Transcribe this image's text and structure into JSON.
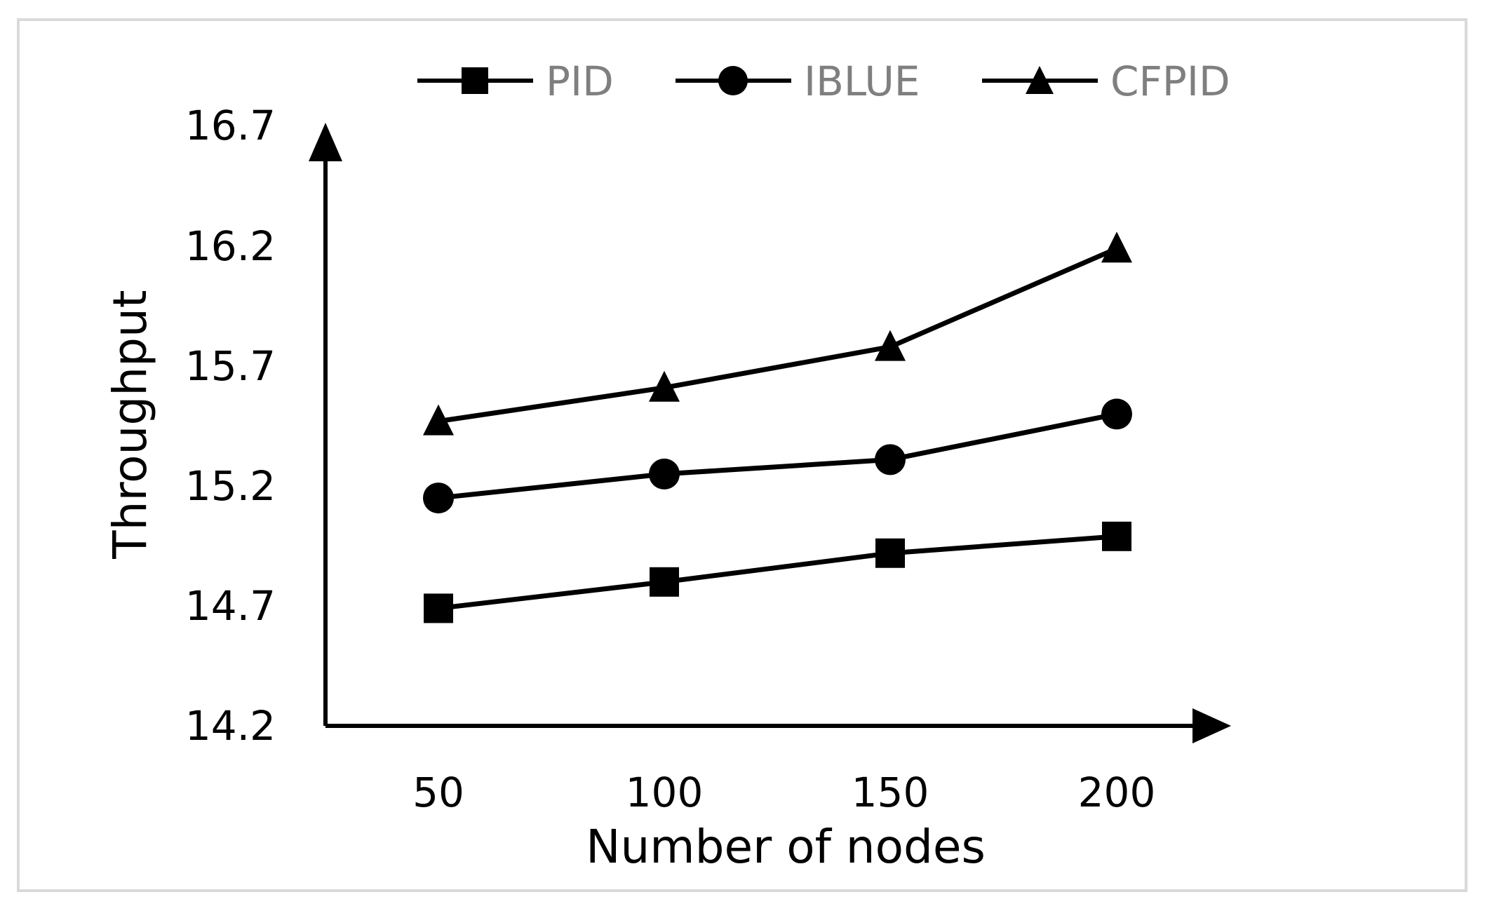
{
  "chart_data": {
    "type": "line",
    "title": "",
    "xlabel": "Number of nodes",
    "ylabel": "Throughput",
    "categories": [
      "50",
      "100",
      "150",
      "200"
    ],
    "yticks": [
      "14.2",
      "14.7",
      "15.2",
      "15.7",
      "16.2",
      "16.7"
    ],
    "ylim": [
      14.2,
      16.7
    ],
    "grid": false,
    "legend_position": "top",
    "series": [
      {
        "name": "PID",
        "marker": "square",
        "values": [
          14.69,
          14.8,
          14.92,
          14.99
        ]
      },
      {
        "name": "IBLUE",
        "marker": "circle",
        "values": [
          15.15,
          15.25,
          15.31,
          15.5
        ]
      },
      {
        "name": "CFPID",
        "marker": "triangle",
        "values": [
          15.47,
          15.61,
          15.78,
          16.19
        ]
      }
    ],
    "colors": {
      "line": "#000000",
      "legend_text": "#7f7f7f",
      "axis_text": "#000000",
      "frame": "#d9d9d9"
    }
  }
}
